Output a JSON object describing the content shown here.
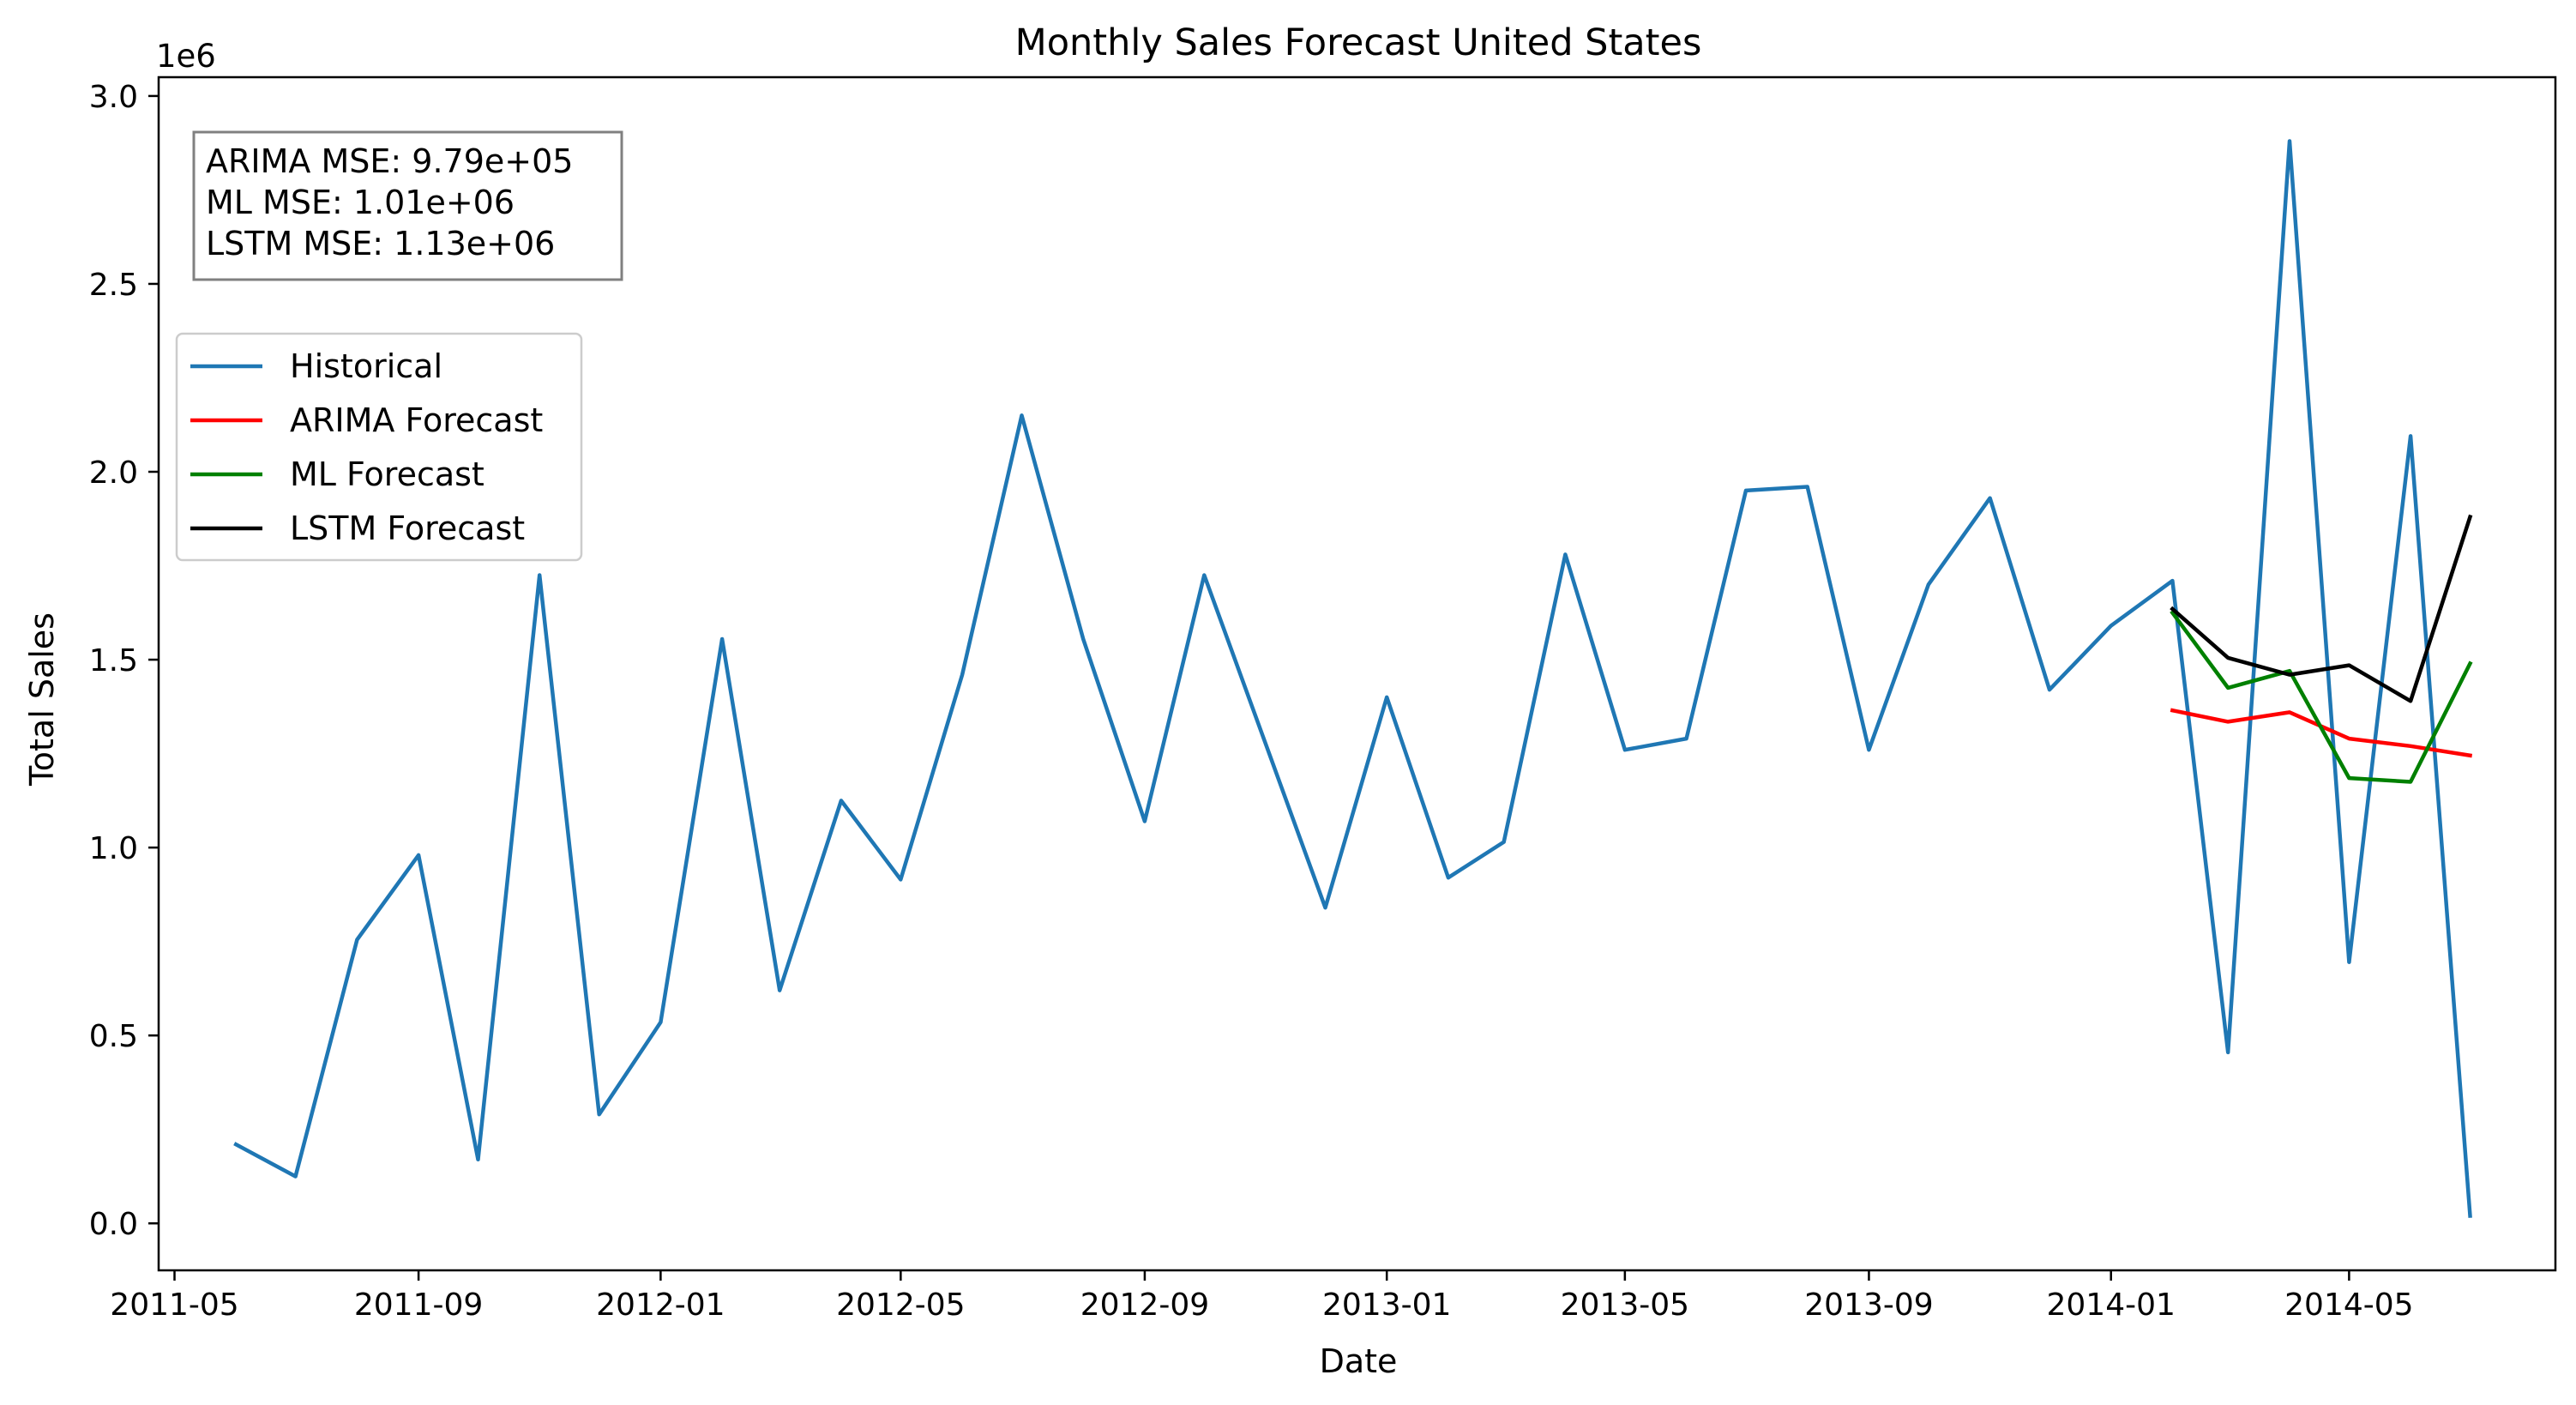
{
  "chart_data": {
    "type": "line",
    "title": "Monthly Sales Forecast United States",
    "xlabel": "Date",
    "ylabel": "Total Sales",
    "y_offset_label": "1e6",
    "y_scale": 1000000,
    "ylim": [
      -125000,
      3050000
    ],
    "xlim": [
      "2011-04-23",
      "2014-08-13"
    ],
    "x_ticks": [
      "2011-05",
      "2011-09",
      "2012-01",
      "2012-05",
      "2012-09",
      "2013-01",
      "2013-05",
      "2013-09",
      "2014-01",
      "2014-05"
    ],
    "y_ticks": [
      "0.0",
      "0.5",
      "1.0",
      "1.5",
      "2.0",
      "2.5",
      "3.0"
    ],
    "grid": false,
    "legend_position": "upper-left",
    "annotation": [
      "ARIMA MSE: 9.79e+05",
      "ML MSE: 1.01e+06",
      "LSTM MSE: 1.13e+06"
    ],
    "series": [
      {
        "name": "Historical",
        "color": "#1f77b4",
        "x": [
          "2011-06-01",
          "2011-07-01",
          "2011-08-01",
          "2011-09-01",
          "2011-10-01",
          "2011-11-01",
          "2011-12-01",
          "2012-01-01",
          "2012-02-01",
          "2012-03-01",
          "2012-04-01",
          "2012-05-01",
          "2012-06-01",
          "2012-07-01",
          "2012-08-01",
          "2012-09-01",
          "2012-10-01",
          "2012-11-01",
          "2012-12-01",
          "2013-01-01",
          "2013-02-01",
          "2013-03-01",
          "2013-04-01",
          "2013-05-01",
          "2013-06-01",
          "2013-07-01",
          "2013-08-01",
          "2013-09-01",
          "2013-10-01",
          "2013-11-01",
          "2013-12-01",
          "2014-01-01",
          "2014-02-01",
          "2014-03-01",
          "2014-04-01",
          "2014-05-01",
          "2014-06-01",
          "2014-07-01"
        ],
        "values": [
          210000,
          125000,
          755000,
          980000,
          170000,
          1725000,
          290000,
          535000,
          1555000,
          620000,
          1125000,
          915000,
          1460000,
          2150000,
          1555000,
          1070000,
          1725000,
          1275000,
          840000,
          1400000,
          920000,
          1015000,
          1780000,
          1260000,
          1290000,
          1950000,
          1960000,
          1260000,
          1700000,
          1930000,
          1420000,
          1590000,
          1710000,
          455000,
          2880000,
          695000,
          2095000,
          20000
        ]
      },
      {
        "name": "ARIMA Forecast",
        "color": "#ff0000",
        "x": [
          "2014-02-01",
          "2014-03-01",
          "2014-04-01",
          "2014-05-01",
          "2014-06-01",
          "2014-07-01"
        ],
        "values": [
          1365000,
          1335000,
          1360000,
          1290000,
          1270000,
          1245000
        ]
      },
      {
        "name": "ML Forecast",
        "color": "#008000",
        "x": [
          "2014-02-01",
          "2014-03-01",
          "2014-04-01",
          "2014-05-01",
          "2014-06-01",
          "2014-07-01"
        ],
        "values": [
          1625000,
          1425000,
          1470000,
          1185000,
          1175000,
          1490000
        ]
      },
      {
        "name": "LSTM Forecast",
        "color": "#000000",
        "x": [
          "2014-02-01",
          "2014-03-01",
          "2014-04-01",
          "2014-05-01",
          "2014-06-01",
          "2014-07-01"
        ],
        "values": [
          1635000,
          1505000,
          1460000,
          1485000,
          1390000,
          1880000
        ]
      }
    ]
  }
}
